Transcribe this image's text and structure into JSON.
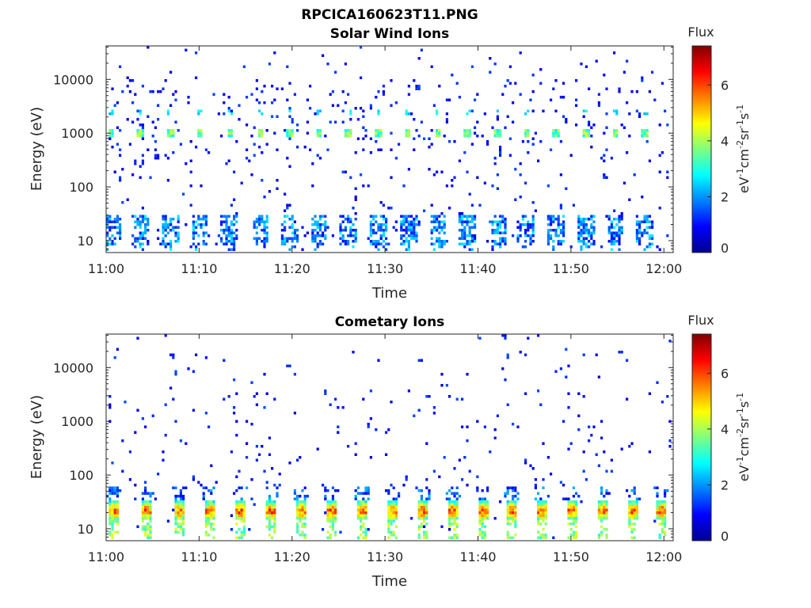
{
  "figure_title": "RPCICA160623T11.PNG",
  "colormap": {
    "stops": [
      "#00008f",
      "#0000ff",
      "#0080ff",
      "#00ffff",
      "#80ff80",
      "#ffff00",
      "#ff8000",
      "#ff0000",
      "#800000"
    ]
  },
  "chart_data": [
    {
      "type": "heatmap",
      "title": "Solar Wind Ions",
      "xlabel": "Time",
      "ylabel": "Energy (eV)",
      "xticks": [
        "11:00",
        "11:10",
        "11:20",
        "11:30",
        "11:40",
        "11:50",
        "12:00"
      ],
      "xlim_minutes": [
        0,
        61
      ],
      "ylim": [
        6,
        42000
      ],
      "yscale": "log",
      "yticks": [
        10,
        100,
        1000,
        10000
      ],
      "ytick_labels": [
        "10",
        "100",
        "1000",
        "10000"
      ],
      "colorbar": {
        "title": "Flux",
        "label": "eV-1cm-2sr-1s-1",
        "range": [
          0,
          7.4
        ],
        "ticks": [
          "0",
          "2",
          "4",
          "6"
        ],
        "tick_values": [
          0,
          2,
          4,
          6
        ]
      },
      "features": {
        "burst_times_minutes": [
          0.6,
          3.7,
          6.9,
          10.1,
          13.3,
          16.6,
          19.8,
          22.9,
          26.1,
          29.3,
          32.5,
          35.7,
          38.9,
          42.1,
          45.2,
          48.4,
          51.6,
          54.8,
          58.0
        ],
        "main_band_energy_ev": 1000,
        "main_band_flux": 3.5,
        "secondary_band_energy_ev": 2300,
        "low_energy_band_ev": [
          8,
          30
        ],
        "background_flux": 1.0
      }
    },
    {
      "type": "heatmap",
      "title": "Cometary Ions",
      "xlabel": "Time",
      "ylabel": "Energy (eV)",
      "xticks": [
        "11:00",
        "11:10",
        "11:20",
        "11:30",
        "11:40",
        "11:50",
        "12:00"
      ],
      "xlim_minutes": [
        0,
        61
      ],
      "ylim": [
        6,
        42000
      ],
      "yscale": "log",
      "yticks": [
        10,
        100,
        1000,
        10000
      ],
      "ytick_labels": [
        "10",
        "100",
        "1000",
        "10000"
      ],
      "colorbar": {
        "title": "Flux",
        "label": "eV-1cm-2sr-1s-1",
        "range": [
          0,
          7.4
        ],
        "ticks": [
          "0",
          "2",
          "4",
          "6"
        ],
        "tick_values": [
          0,
          2,
          4,
          6
        ]
      },
      "features": {
        "burst_times_minutes": [
          0.9,
          4.3,
          7.9,
          11.2,
          14.5,
          17.8,
          21.0,
          24.3,
          27.6,
          30.8,
          34.0,
          37.3,
          40.5,
          43.7,
          46.9,
          50.1,
          53.4,
          56.6,
          59.8
        ],
        "low_energy_band_ev": [
          14,
          32
        ],
        "low_energy_band_peak_flux": 6.5,
        "background_flux": 1.0
      }
    }
  ]
}
